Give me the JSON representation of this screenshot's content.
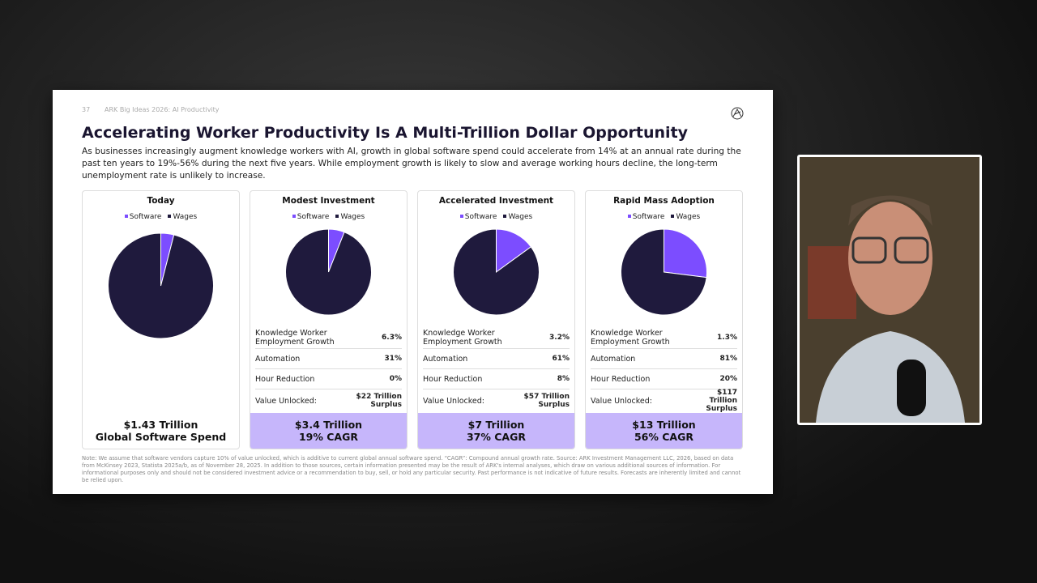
{
  "header": {
    "page": "37",
    "deck": "ARK Big Ideas 2026: AI Productivity"
  },
  "title": "Accelerating Worker Productivity Is A Multi-Trillion Dollar Opportunity",
  "subtitle": "As businesses increasingly augment knowledge workers with AI, growth in global software spend could accelerate from 14% at an annual rate during the past ten years to 19%-56% during the next five years. While employment growth is likely to slow and average working hours decline, the long-term unemployment rate is unlikely to increase.",
  "chart_data": [
    {
      "type": "pie",
      "title": "Today",
      "categories": [
        "Software",
        "Wages"
      ],
      "values": [
        4,
        96
      ],
      "colors": [
        "#7c4dff",
        "#1f1a3d"
      ]
    },
    {
      "type": "pie",
      "title": "Modest Investment",
      "categories": [
        "Software",
        "Wages"
      ],
      "values": [
        6,
        94
      ],
      "colors": [
        "#7c4dff",
        "#1f1a3d"
      ]
    },
    {
      "type": "pie",
      "title": "Accelerated Investment",
      "categories": [
        "Software",
        "Wages"
      ],
      "values": [
        15,
        85
      ],
      "colors": [
        "#7c4dff",
        "#1f1a3d"
      ]
    },
    {
      "type": "pie",
      "title": "Rapid Mass Adoption",
      "categories": [
        "Software",
        "Wages"
      ],
      "values": [
        27,
        73
      ],
      "colors": [
        "#7c4dff",
        "#1f1a3d"
      ]
    }
  ],
  "panels": [
    {
      "rows": [],
      "footer": [
        "$1.43 Trillion",
        "Global Software Spend"
      ]
    },
    {
      "rows": [
        [
          "Knowledge Worker Employment Growth",
          "6.3%"
        ],
        [
          "Automation",
          "31%"
        ],
        [
          "Hour Reduction",
          "0%"
        ],
        [
          "Value Unlocked:",
          "$22 Trillion Surplus"
        ]
      ],
      "footer": [
        "$3.4 Trillion",
        "19% CAGR"
      ]
    },
    {
      "rows": [
        [
          "Knowledge Worker Employment Growth",
          "3.2%"
        ],
        [
          "Automation",
          "61%"
        ],
        [
          "Hour Reduction",
          "8%"
        ],
        [
          "Value Unlocked:",
          "$57 Trillion Surplus"
        ]
      ],
      "footer": [
        "$7 Trillion",
        "37% CAGR"
      ]
    },
    {
      "rows": [
        [
          "Knowledge Worker Employment Growth",
          "1.3%"
        ],
        [
          "Automation",
          "81%"
        ],
        [
          "Hour Reduction",
          "20%"
        ],
        [
          "Value Unlocked:",
          "$117 Trillion Surplus"
        ]
      ],
      "footer": [
        "$13 Trillion",
        "56% CAGR"
      ]
    }
  ],
  "note": "Note: We assume that software vendors capture 10% of value unlocked, which is additive to current global annual software spend. “CAGR”: Compound annual growth rate. Source: ARK Investment Management LLC, 2026, based on data from McKinsey 2023, Statista 2025a/b, as of November 28, 2025. In addition to those sources, certain information presented may be the result of ARK's internal analyses, which draw on various additional sources of information. For informational purposes only and should not be considered investment advice or a recommendation to buy, sell, or hold any particular security. Past performance is not indicative of future results. Forecasts are inherently limited and cannot be relied upon."
}
